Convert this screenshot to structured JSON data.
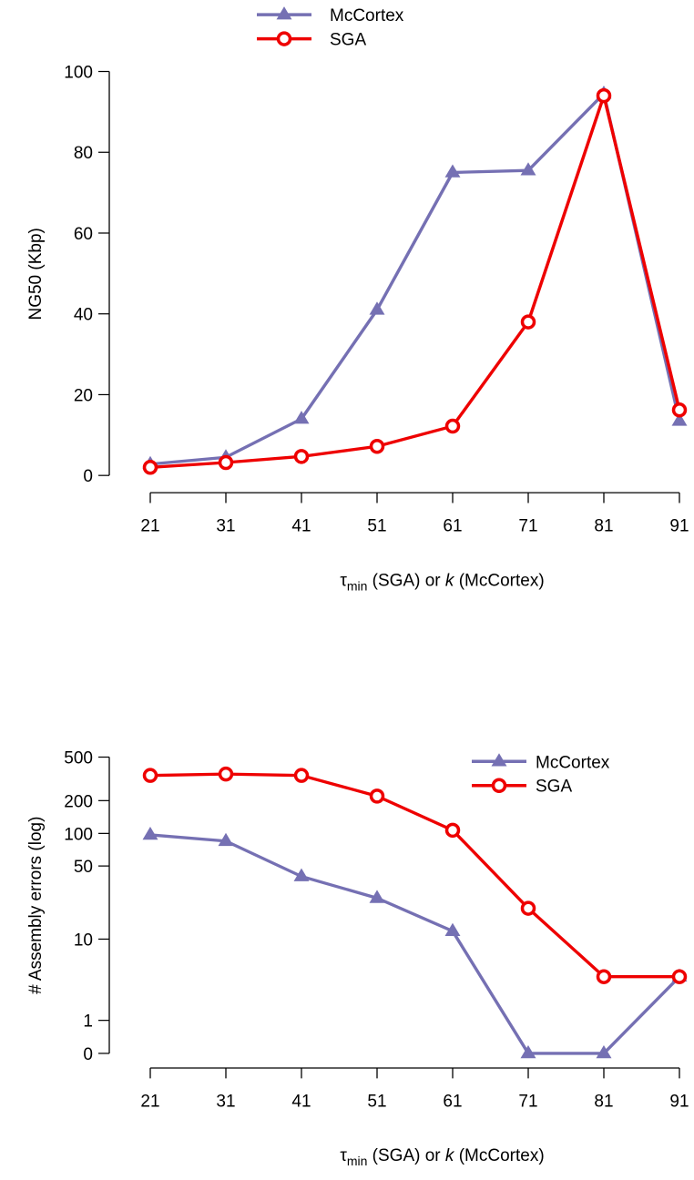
{
  "chart_data": [
    {
      "type": "line",
      "ylabel": "NG50 (Kbp)",
      "xlabel": {
        "pre": "τ",
        "sub": "min",
        "mid": " (SGA) or ",
        "italic": "k",
        "post": " (McCortex)"
      },
      "x": [
        21,
        31,
        41,
        51,
        61,
        71,
        81,
        91
      ],
      "x_tick_labels": [
        "21",
        "31",
        "41",
        "51",
        "61",
        "71",
        "81",
        "91"
      ],
      "ylim": [
        0,
        100
      ],
      "y_ticks": [
        0,
        20,
        40,
        60,
        80,
        100
      ],
      "y_tick_labels": [
        "0",
        "20",
        "40",
        "60",
        "80",
        "100"
      ],
      "y_scale": "linear",
      "grid": false,
      "legend_position": "top-center",
      "series": [
        {
          "name": "McCortex",
          "color": "#7570b3",
          "marker": "triangle",
          "values": [
            2.8,
            4.5,
            14.0,
            41.0,
            75.0,
            75.5,
            94.5,
            13.5
          ]
        },
        {
          "name": "SGA",
          "color": "#ee0000",
          "marker": "circle",
          "values": [
            2.0,
            3.2,
            4.7,
            7.2,
            12.2,
            38.0,
            94.0,
            16.2
          ]
        }
      ]
    },
    {
      "type": "line",
      "ylabel": "# Assembly errors (log)",
      "xlabel": {
        "pre": "τ",
        "sub": "min",
        "mid": " (SGA) or ",
        "italic": "k",
        "post": " (McCortex)"
      },
      "x": [
        21,
        31,
        41,
        51,
        61,
        71,
        81,
        91
      ],
      "x_tick_labels": [
        "21",
        "31",
        "41",
        "51",
        "61",
        "71",
        "81",
        "91"
      ],
      "y_scale": "log(y+1)",
      "y_ticks": [
        0,
        1,
        10,
        50,
        100,
        200,
        500
      ],
      "y_tick_labels": [
        "0",
        "1",
        "10",
        "50",
        "100",
        "200",
        "500"
      ],
      "ylim": [
        0,
        500
      ],
      "grid": false,
      "legend_position": "top-right",
      "series": [
        {
          "name": "McCortex",
          "color": "#7570b3",
          "marker": "triangle",
          "values": [
            97,
            85,
            40,
            25,
            12,
            0,
            0,
            4
          ]
        },
        {
          "name": "SGA",
          "color": "#ee0000",
          "marker": "circle",
          "values": [
            340,
            350,
            340,
            220,
            107,
            20,
            4,
            4
          ]
        }
      ]
    }
  ]
}
